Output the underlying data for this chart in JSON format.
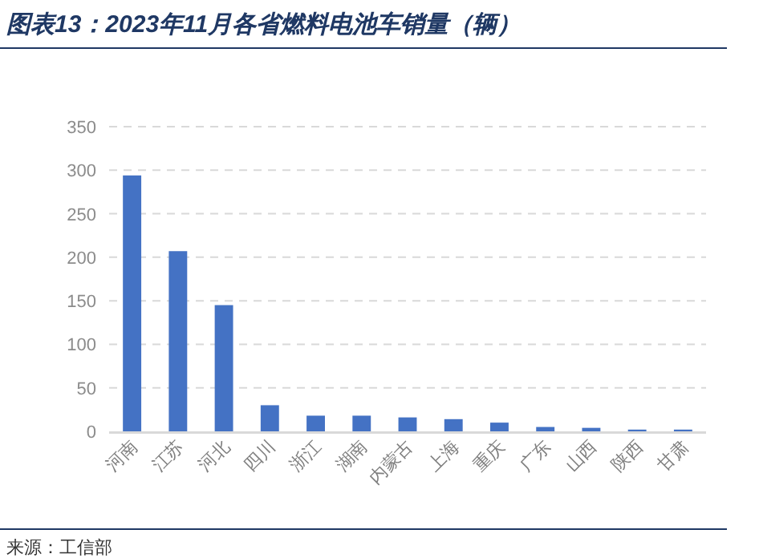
{
  "chart_data": {
    "type": "bar",
    "title": "图表13：2023年11月各省燃料电池车销量（辆）",
    "categories": [
      "河南",
      "江苏",
      "河北",
      "四川",
      "浙江",
      "湖南",
      "内蒙古",
      "上海",
      "重庆",
      "广东",
      "山西",
      "陕西",
      "甘肃"
    ],
    "values": [
      294,
      207,
      145,
      30,
      18,
      18,
      16,
      14,
      10,
      5,
      4,
      2,
      2
    ],
    "color": "#4472c4",
    "ylim": [
      0,
      350
    ],
    "yticks": [
      0,
      50,
      100,
      150,
      200,
      250,
      300,
      350
    ],
    "grid": "y",
    "annotations": [
      "来源：工信部"
    ]
  }
}
